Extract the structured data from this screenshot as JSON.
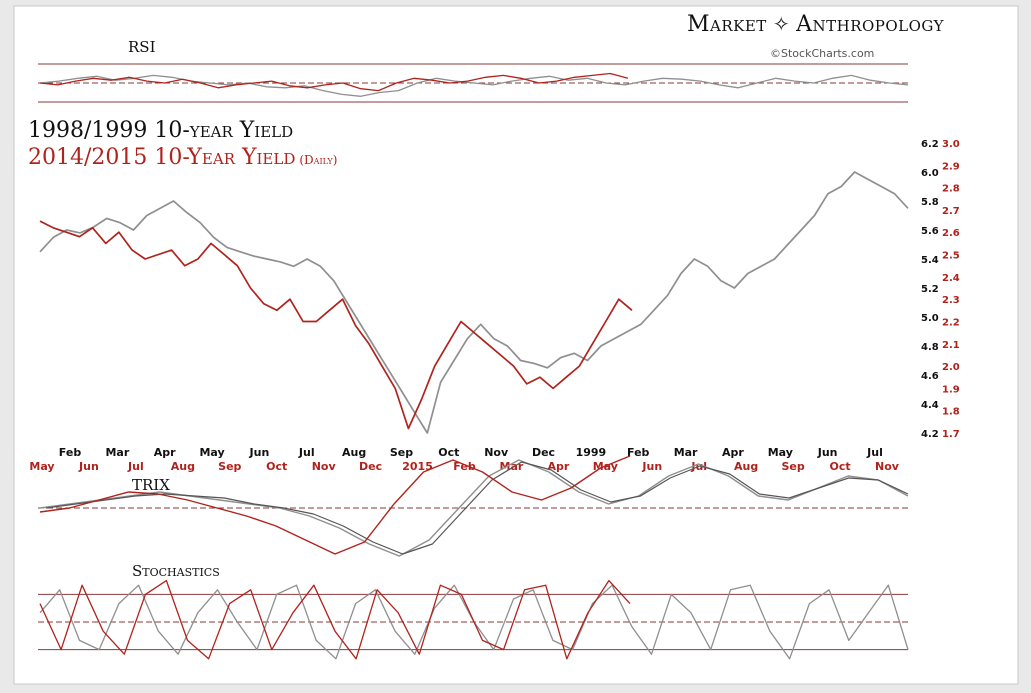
{
  "brand": {
    "name": "Market",
    "name2": "Anthropology",
    "helix_icon": "dna-helix-icon",
    "credit": "©StockCharts.com"
  },
  "titles": {
    "line1": "1998/1999 10-year Yield",
    "line2": "2014/2015  10-Year Yield",
    "line2_note": "(Daily)"
  },
  "panels": {
    "rsi": "RSI",
    "trix": "TRIX",
    "stoch": "Stochastics"
  },
  "colors": {
    "series_1998": "#8f8f8f",
    "series_2014": "#b0231c",
    "axis_black": "#111111",
    "axis_red": "#b0231c",
    "guide": "#8b3a3a"
  },
  "chart_data": {
    "type": "line",
    "title": "1998/1999 10-year Yield vs 2014/2015 10-Year Yield (Daily)",
    "xlabel": "",
    "ylabel": "",
    "months_1998_1999": [
      "Feb",
      "Mar",
      "Apr",
      "May",
      "Jun",
      "Jul",
      "Aug",
      "Sep",
      "Oct",
      "Nov",
      "Dec",
      "1999",
      "Feb",
      "Mar",
      "Apr",
      "May",
      "Jun",
      "Jul"
    ],
    "months_2014_2015": [
      "May",
      "Jun",
      "Jul",
      "Aug",
      "Sep",
      "Oct",
      "Nov",
      "Dec",
      "2015",
      "Feb",
      "Mar",
      "Apr",
      "May",
      "Jun",
      "Jul",
      "Aug",
      "Sep",
      "Oct",
      "Nov"
    ],
    "y_left_ticks": [
      6.2,
      6.0,
      5.8,
      5.6,
      5.4,
      5.2,
      5.0,
      4.8,
      4.6,
      4.4,
      4.2
    ],
    "y_right_ticks": [
      3.0,
      2.9,
      2.8,
      2.7,
      2.6,
      2.5,
      2.4,
      2.3,
      2.2,
      2.1,
      2.0,
      1.9,
      1.8,
      1.7
    ],
    "ylim_left": [
      4.2,
      6.2
    ],
    "ylim_right": [
      1.7,
      3.0
    ],
    "series": [
      {
        "name": "1998/1999 10-year Yield",
        "axis": "left",
        "color": "#8f8f8f",
        "values": [
          5.45,
          5.55,
          5.6,
          5.58,
          5.62,
          5.68,
          5.65,
          5.6,
          5.7,
          5.75,
          5.8,
          5.72,
          5.65,
          5.55,
          5.48,
          5.45,
          5.42,
          5.4,
          5.38,
          5.35,
          5.4,
          5.35,
          5.25,
          5.1,
          4.95,
          4.8,
          4.65,
          4.5,
          4.35,
          4.2,
          4.55,
          4.7,
          4.85,
          4.95,
          4.85,
          4.8,
          4.7,
          4.68,
          4.65,
          4.72,
          4.75,
          4.7,
          4.8,
          4.85,
          4.9,
          4.95,
          5.05,
          5.15,
          5.3,
          5.4,
          5.35,
          5.25,
          5.2,
          5.3,
          5.35,
          5.4,
          5.5,
          5.6,
          5.7,
          5.85,
          5.9,
          6.0,
          5.95,
          5.9,
          5.85,
          5.75
        ]
      },
      {
        "name": "2014/2015 10-Year Yield (Daily)",
        "axis": "right",
        "color": "#b0231c",
        "values": [
          2.65,
          2.62,
          2.6,
          2.58,
          2.62,
          2.55,
          2.6,
          2.52,
          2.48,
          2.5,
          2.52,
          2.45,
          2.48,
          2.55,
          2.5,
          2.45,
          2.35,
          2.28,
          2.25,
          2.3,
          2.2,
          2.2,
          2.25,
          2.3,
          2.18,
          2.1,
          2.0,
          1.9,
          1.72,
          1.85,
          2.0,
          2.1,
          2.2,
          2.15,
          2.1,
          2.05,
          2.0,
          1.92,
          1.95,
          1.9,
          1.95,
          2.0,
          2.1,
          2.2,
          2.3,
          2.25
        ]
      }
    ],
    "rsi": {
      "levels": [
        70,
        50,
        30
      ],
      "series_1998": [
        50,
        52,
        55,
        57,
        53,
        55,
        58,
        56,
        52,
        50,
        48,
        50,
        46,
        45,
        47,
        42,
        38,
        36,
        40,
        42,
        50,
        55,
        52,
        50,
        48,
        52,
        55,
        57,
        53,
        55,
        50,
        48,
        52,
        55,
        54,
        52,
        48,
        45,
        50,
        55,
        52,
        50,
        55,
        58,
        53,
        50,
        48
      ],
      "series_2014": [
        50,
        48,
        52,
        55,
        53,
        56,
        52,
        50,
        54,
        50,
        45,
        48,
        50,
        52,
        47,
        45,
        48,
        50,
        44,
        42,
        50,
        55,
        53,
        50,
        52,
        56,
        58,
        55,
        50,
        52,
        56,
        58,
        60,
        55
      ]
    },
    "trix": {
      "series_1998_a": [
        0,
        0.1,
        0.2,
        0.3,
        0.4,
        0.3,
        0.2,
        0.1,
        0,
        -0.2,
        -0.5,
        -0.9,
        -1.2,
        -0.8,
        0,
        0.8,
        1.2,
        0.9,
        0.4,
        0.1,
        0.3,
        0.8,
        1.1,
        0.8,
        0.3,
        0.2,
        0.5,
        0.8,
        0.7,
        0.3
      ],
      "series_1998_b": [
        0,
        0.1,
        0.2,
        0.3,
        0.35,
        0.3,
        0.25,
        0.1,
        0,
        -0.15,
        -0.45,
        -0.85,
        -1.15,
        -0.9,
        -0.1,
        0.7,
        1.15,
        0.95,
        0.45,
        0.15,
        0.3,
        0.75,
        1.05,
        0.85,
        0.35,
        0.25,
        0.5,
        0.75,
        0.7,
        0.35
      ],
      "series_2014": [
        -0.1,
        0,
        0.2,
        0.4,
        0.35,
        0.2,
        0,
        -0.2,
        -0.45,
        -0.8,
        -1.15,
        -0.85,
        0.1,
        0.9,
        1.2,
        0.9,
        0.4,
        0.2,
        0.5,
        1.0,
        1.3
      ]
    },
    "stochastics": {
      "levels": [
        80,
        50,
        20
      ],
      "series_1998": [
        60,
        85,
        30,
        20,
        70,
        90,
        40,
        15,
        60,
        85,
        50,
        20,
        80,
        90,
        30,
        10,
        70,
        85,
        40,
        15,
        65,
        90,
        50,
        20,
        75,
        85,
        30,
        20,
        70,
        90,
        45,
        15,
        80,
        60,
        20,
        85,
        90,
        40,
        10,
        70,
        85,
        30,
        60,
        90,
        20
      ],
      "series_2014": [
        70,
        20,
        90,
        40,
        15,
        80,
        95,
        30,
        10,
        70,
        85,
        20,
        60,
        90,
        40,
        10,
        85,
        60,
        15,
        90,
        80,
        30,
        20,
        85,
        90,
        10,
        60,
        95,
        70
      ]
    },
    "legend": "none"
  }
}
